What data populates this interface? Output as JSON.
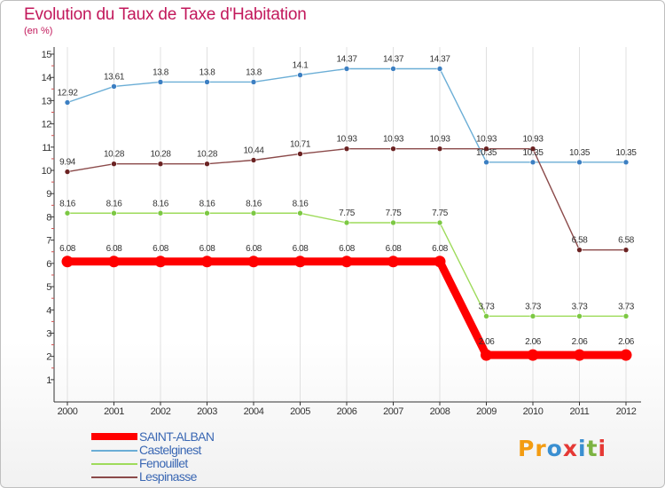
{
  "title": "Evolution du Taux de Taxe d'Habitation",
  "subtitle": "(en %)",
  "logo": {
    "text": "Proxiti",
    "letter_colors": [
      "#f39c12",
      "#f39c12",
      "#3a8fd1",
      "#e53935",
      "#3a8fd1",
      "#7cb342",
      "#e53935"
    ]
  },
  "chart_data": {
    "type": "line",
    "title": "Evolution du Taux de Taxe d'Habitation",
    "ylabel": "(en %)",
    "xlabel": "",
    "x": [
      "2000",
      "2001",
      "2002",
      "2003",
      "2004",
      "2005",
      "2006",
      "2007",
      "2008",
      "2009",
      "2010",
      "2011",
      "2012"
    ],
    "ylim": [
      0.5,
      15
    ],
    "yticks": [
      1,
      2,
      3,
      4,
      5,
      6,
      7,
      8,
      9,
      10,
      11,
      12,
      13,
      14,
      15
    ],
    "grid": "vertical",
    "legend_position": "bottom-left",
    "series": [
      {
        "name": "SAINT-ALBAN",
        "color": "#ff0000",
        "style": "thick",
        "values": [
          6.08,
          6.08,
          6.08,
          6.08,
          6.08,
          6.08,
          6.08,
          6.08,
          6.08,
          2.06,
          2.06,
          2.06,
          2.06
        ],
        "labels": [
          "6.08",
          "6.08",
          "6.08",
          "6.08",
          "6.08",
          "6.08",
          "6.08",
          "6.08",
          "6.08",
          "2.06",
          "2.06",
          "2.06",
          "2.06"
        ]
      },
      {
        "name": "Castelginest",
        "color": "#6baed6",
        "marker": "#3c7fc2",
        "values": [
          12.92,
          13.61,
          13.8,
          13.8,
          13.8,
          14.1,
          14.37,
          14.37,
          14.37,
          10.35,
          10.35,
          10.35,
          10.35
        ],
        "labels": [
          "12.92",
          "13.61",
          "13.8",
          "13.8",
          "13.8",
          "14.1",
          "14.37",
          "14.37",
          "14.37",
          "10.35",
          "10.35",
          "10.35",
          "10.35"
        ]
      },
      {
        "name": "Fenouillet",
        "color": "#9edb5b",
        "marker": "#7cc843",
        "values": [
          8.16,
          8.16,
          8.16,
          8.16,
          8.16,
          8.16,
          7.75,
          7.75,
          7.75,
          3.73,
          3.73,
          3.73,
          3.73
        ],
        "labels": [
          "8.16",
          "8.16",
          "8.16",
          "8.16",
          "8.16",
          "8.16",
          "7.75",
          "7.75",
          "7.75",
          "3.73",
          "3.73",
          "3.73",
          "3.73"
        ]
      },
      {
        "name": "Lespinasse",
        "color": "#8b4a4a",
        "marker": "#6b2222",
        "values": [
          9.94,
          10.28,
          10.28,
          10.28,
          10.44,
          10.71,
          10.93,
          10.93,
          10.93,
          10.93,
          10.93,
          6.58,
          6.58
        ],
        "labels": [
          "9.94",
          "10.28",
          "10.28",
          "10.28",
          "10.44",
          "10.71",
          "10.93",
          "10.93",
          "10.93",
          "10.93",
          "10.93",
          "6.58",
          "6.58"
        ]
      }
    ]
  }
}
